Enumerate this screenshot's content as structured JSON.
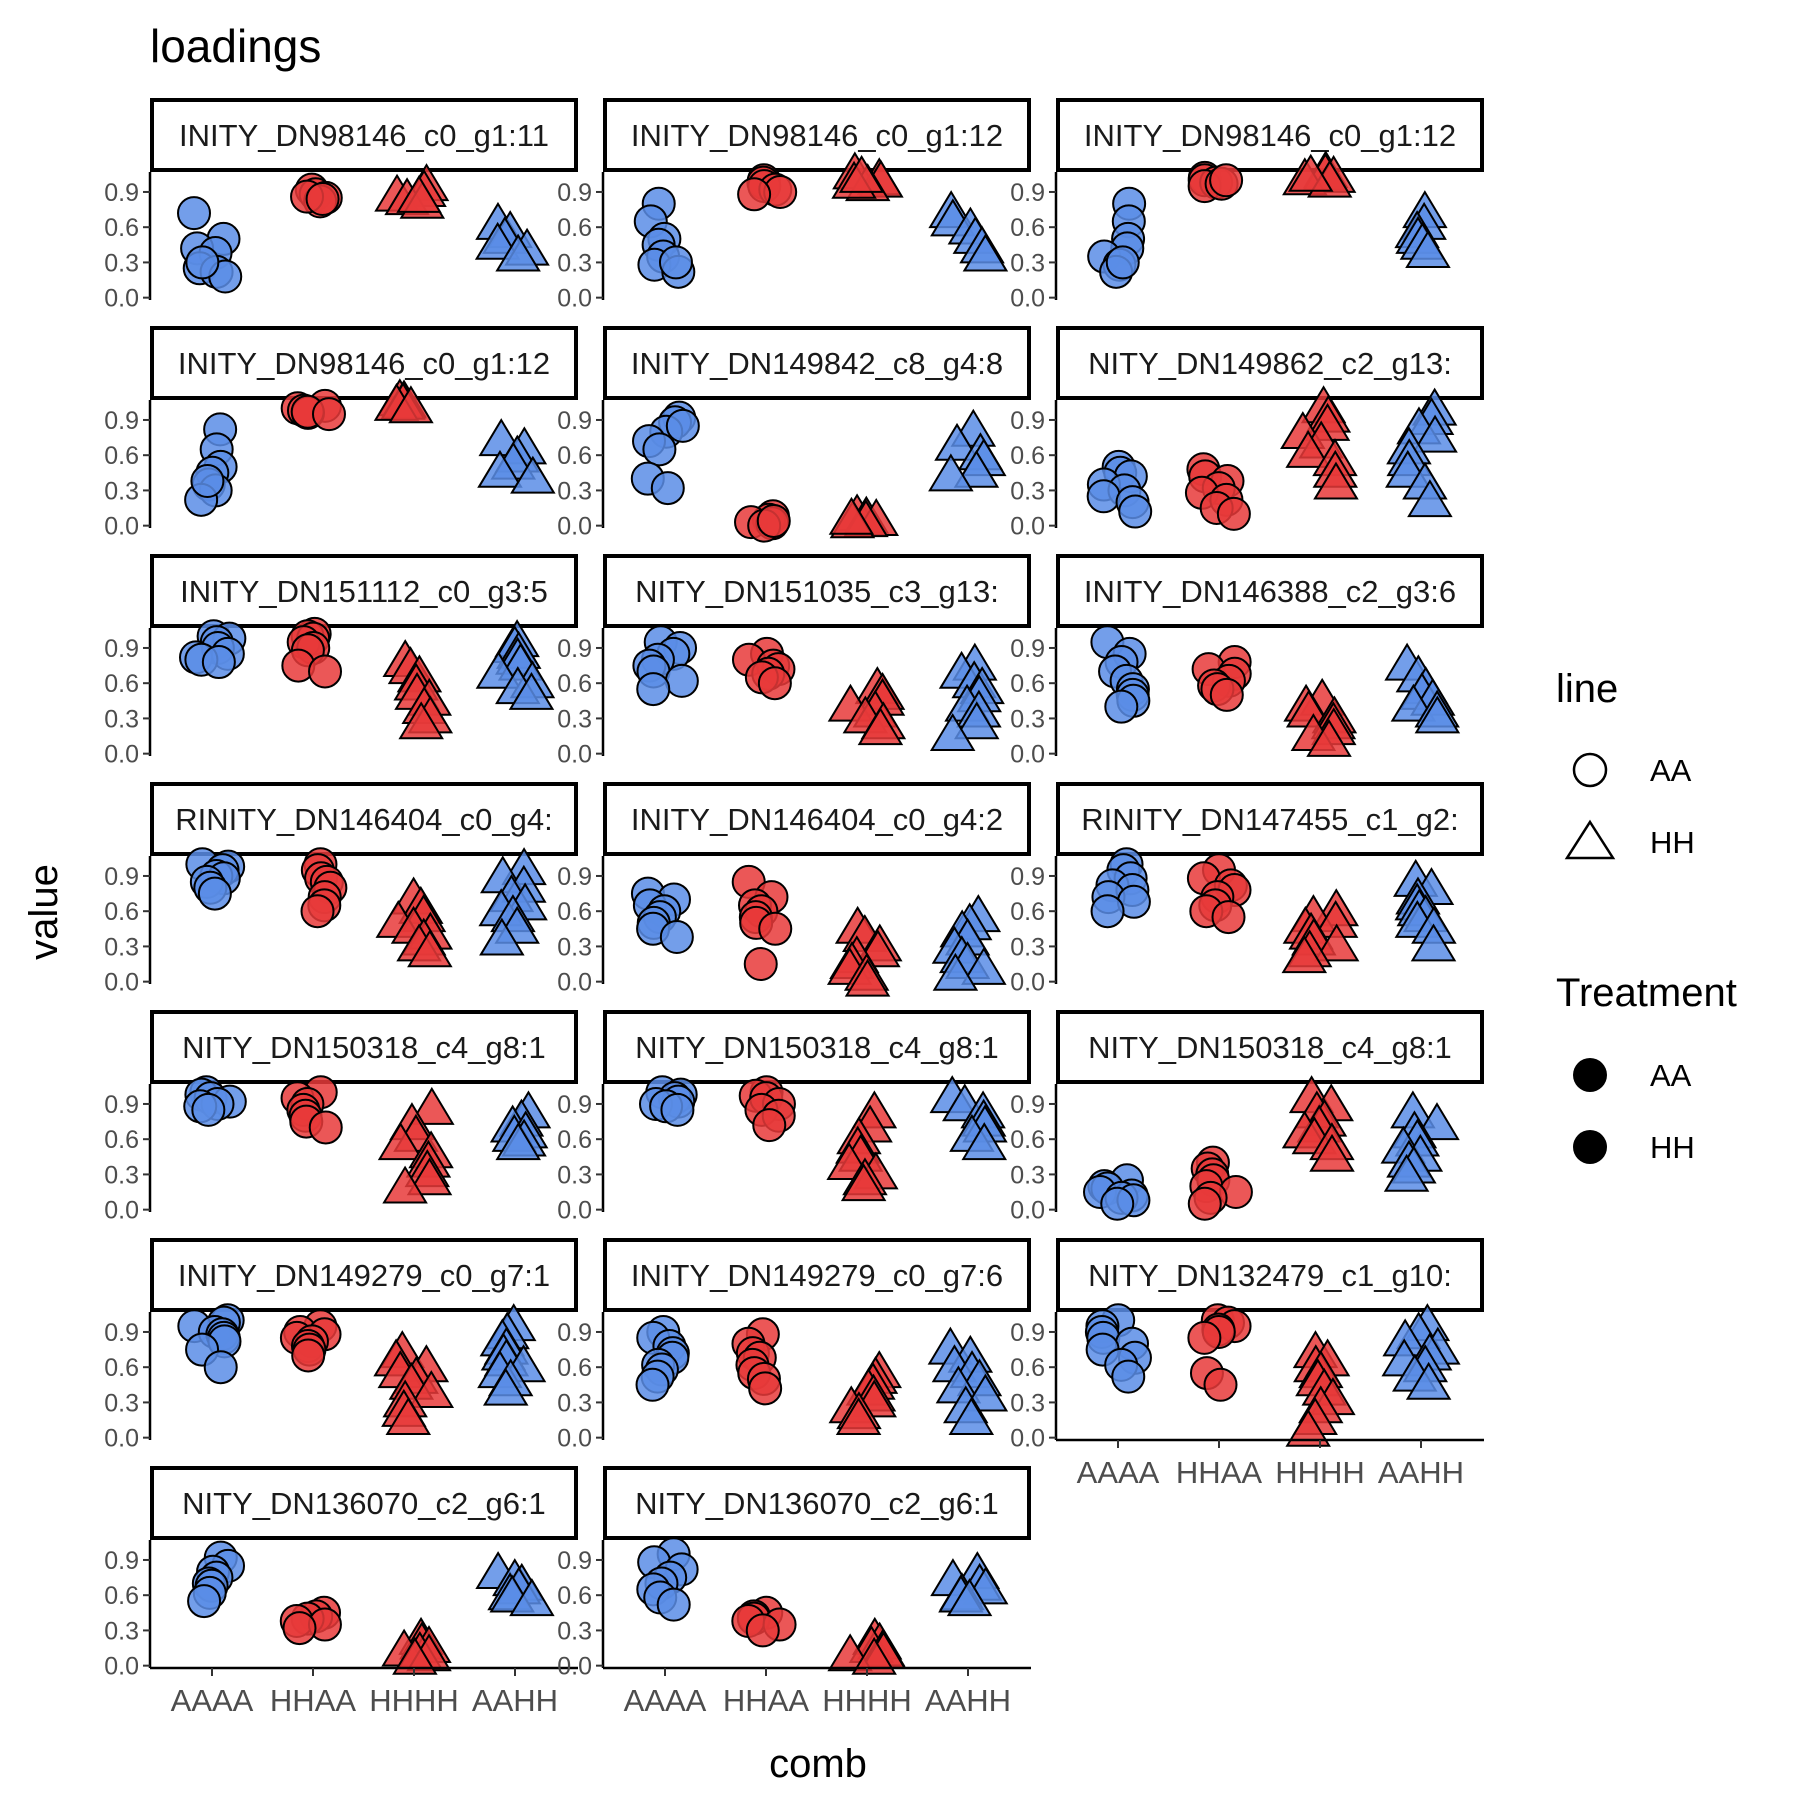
{
  "chart_data": {
    "type": "scatter",
    "title": "loadings",
    "xlabel": "comb",
    "ylabel": "value",
    "ylim": [
      -0.02,
      1.07
    ],
    "yticks": [
      "0.0",
      "0.3",
      "0.6",
      "0.9"
    ],
    "categories": [
      "AAAA",
      "HHAA",
      "HHHH",
      "AAHH"
    ],
    "grid": false,
    "legend_position": "right",
    "colors": {
      "AAAA": "#5B8DE6",
      "HHAA": "#E8393A",
      "HHHH": "#E8393A",
      "AAHH": "#5B8DE6"
    },
    "shapes": {
      "AAAA": "circle",
      "HHAA": "circle",
      "HHHH": "triangle",
      "AAHH": "triangle"
    },
    "legend": {
      "line": {
        "title": "line",
        "items": [
          "AA",
          "HH"
        ]
      },
      "treatment": {
        "title": "Treatment",
        "items": [
          "AA",
          "HH"
        ]
      }
    },
    "panels": [
      {
        "label": "INITY_DN98146_c0_g1:11",
        "values": {
          "AAAA": [
            0.72,
            0.5,
            0.42,
            0.38,
            0.25,
            0.22,
            0.18,
            0.3
          ],
          "HHAA": [
            0.92,
            0.88,
            0.85,
            0.82,
            0.86,
            0.84
          ],
          "HHHH": [
            0.95,
            0.9,
            0.86,
            0.83,
            0.8,
            0.85
          ],
          "AAHH": [
            0.62,
            0.55,
            0.5,
            0.45,
            0.4,
            0.35
          ]
        }
      },
      {
        "label": "INITY_DN98146_c0_g1:12",
        "values": {
          "AAAA": [
            0.8,
            0.65,
            0.5,
            0.45,
            0.35,
            0.28,
            0.22,
            0.3
          ],
          "HHAA": [
            1.0,
            0.98,
            0.95,
            0.92,
            0.9,
            0.88
          ],
          "HHHH": [
            1.05,
            1.0,
            0.98,
            0.95,
            0.97,
            1.02
          ],
          "AAHH": [
            0.72,
            0.65,
            0.58,
            0.5,
            0.42,
            0.35
          ]
        }
      },
      {
        "label": "INITY_DN98146_c0_g1:12",
        "values": {
          "AAAA": [
            0.8,
            0.65,
            0.5,
            0.42,
            0.35,
            0.28,
            0.22,
            0.3
          ],
          "HHAA": [
            1.02,
            1.0,
            0.98,
            0.95,
            0.97,
            1.0
          ],
          "HHHH": [
            1.06,
            1.04,
            1.02,
            1.0,
            0.98,
            1.03
          ],
          "AAHH": [
            0.72,
            0.62,
            0.55,
            0.5,
            0.45,
            0.38
          ]
        }
      },
      {
        "label": "INITY_DN98146_c0_g1:12",
        "values": {
          "AAAA": [
            0.82,
            0.65,
            0.5,
            0.45,
            0.35,
            0.3,
            0.22,
            0.38
          ],
          "HHAA": [
            1.02,
            1.0,
            0.98,
            0.96,
            0.97,
            0.95
          ],
          "HHHH": [
            1.06,
            1.05,
            1.04,
            1.03,
            1.02,
            1.0
          ],
          "AAHH": [
            0.72,
            0.65,
            0.58,
            0.52,
            0.45,
            0.4
          ]
        }
      },
      {
        "label": "INITY_DN149842_c8_g4:8",
        "values": {
          "AAAA": [
            0.92,
            0.88,
            0.8,
            0.72,
            0.65,
            0.4,
            0.32,
            0.85
          ],
          "HHAA": [
            0.08,
            0.05,
            0.03,
            0.02,
            0.0,
            0.04
          ],
          "HHHH": [
            0.08,
            0.06,
            0.04,
            0.03,
            0.02,
            0.05
          ],
          "AAHH": [
            0.8,
            0.68,
            0.6,
            0.55,
            0.45,
            0.42
          ]
        }
      },
      {
        "label": "NITY_DN149862_c2_g13:",
        "values": {
          "AAAA": [
            0.5,
            0.45,
            0.42,
            0.35,
            0.3,
            0.25,
            0.2,
            0.12
          ],
          "HHAA": [
            0.48,
            0.42,
            0.38,
            0.32,
            0.28,
            0.22,
            0.15,
            0.1
          ],
          "HHHH": [
            1.0,
            0.92,
            0.85,
            0.78,
            0.7,
            0.62,
            0.55,
            0.45,
            0.35
          ],
          "AAHH": [
            0.98,
            0.9,
            0.82,
            0.75,
            0.65,
            0.55,
            0.45,
            0.35,
            0.2
          ]
        }
      },
      {
        "label": "INITY_DN151112_c0_g3:5",
        "values": {
          "AAAA": [
            1.0,
            0.98,
            0.95,
            0.9,
            0.85,
            0.82,
            0.8,
            0.78
          ],
          "HHAA": [
            1.02,
            1.0,
            0.98,
            0.95,
            0.9,
            0.88,
            0.75,
            0.7
          ],
          "HHHH": [
            0.78,
            0.72,
            0.65,
            0.58,
            0.5,
            0.45,
            0.38,
            0.3,
            0.25
          ],
          "AAHH": [
            0.95,
            0.9,
            0.85,
            0.8,
            0.75,
            0.68,
            0.6,
            0.55,
            0.5
          ]
        }
      },
      {
        "label": "NITY_DN151035_c3_g13:",
        "values": {
          "AAAA": [
            0.95,
            0.9,
            0.85,
            0.8,
            0.75,
            0.7,
            0.62,
            0.55
          ],
          "HHAA": [
            0.85,
            0.8,
            0.75,
            0.72,
            0.68,
            0.65,
            0.6
          ],
          "HHHH": [
            0.55,
            0.5,
            0.45,
            0.4,
            0.35,
            0.3,
            0.25,
            0.2
          ],
          "AAHH": [
            0.75,
            0.68,
            0.6,
            0.55,
            0.48,
            0.4,
            0.35,
            0.25,
            0.15
          ]
        }
      },
      {
        "label": "INITY_DN146388_c2_g3:6",
        "values": {
          "AAAA": [
            0.95,
            0.85,
            0.78,
            0.7,
            0.62,
            0.55,
            0.5,
            0.45,
            0.4
          ],
          "HHAA": [
            0.78,
            0.72,
            0.68,
            0.62,
            0.58,
            0.55,
            0.5
          ],
          "HHHH": [
            0.45,
            0.4,
            0.35,
            0.3,
            0.25,
            0.2,
            0.15,
            0.1
          ],
          "AAHH": [
            0.75,
            0.65,
            0.55,
            0.5,
            0.45,
            0.4,
            0.35,
            0.3
          ]
        }
      },
      {
        "label": "RINITY_DN146404_c0_g4:",
        "values": {
          "AAAA": [
            1.0,
            0.98,
            0.95,
            0.9,
            0.88,
            0.85,
            0.8,
            0.75
          ],
          "HHAA": [
            1.0,
            0.95,
            0.88,
            0.85,
            0.8,
            0.72,
            0.65,
            0.6
          ],
          "HHHH": [
            0.7,
            0.62,
            0.55,
            0.5,
            0.45,
            0.4,
            0.35,
            0.3,
            0.25
          ],
          "AAHH": [
            0.95,
            0.88,
            0.8,
            0.72,
            0.65,
            0.6,
            0.55,
            0.45,
            0.35
          ]
        }
      },
      {
        "label": "INITY_DN146404_c0_g4:2",
        "values": {
          "AAAA": [
            0.75,
            0.7,
            0.65,
            0.6,
            0.55,
            0.5,
            0.45,
            0.38
          ],
          "HHAA": [
            0.85,
            0.72,
            0.65,
            0.6,
            0.55,
            0.5,
            0.45,
            0.15
          ],
          "HHHH": [
            0.45,
            0.38,
            0.3,
            0.25,
            0.2,
            0.15,
            0.1,
            0.05,
            0.0
          ],
          "AAHH": [
            0.55,
            0.48,
            0.42,
            0.35,
            0.28,
            0.2,
            0.15,
            0.1,
            0.05
          ]
        }
      },
      {
        "label": "RINITY_DN147455_c1_g2:",
        "values": {
          "AAAA": [
            1.0,
            0.95,
            0.88,
            0.82,
            0.78,
            0.72,
            0.68,
            0.6
          ],
          "HHAA": [
            0.95,
            0.88,
            0.82,
            0.78,
            0.72,
            0.65,
            0.6,
            0.55
          ],
          "HHHH": [
            0.6,
            0.55,
            0.5,
            0.45,
            0.4,
            0.35,
            0.3,
            0.25,
            0.2
          ],
          "AAHH": [
            0.85,
            0.78,
            0.7,
            0.65,
            0.6,
            0.55,
            0.5,
            0.45,
            0.3
          ]
        }
      },
      {
        "label": "NITY_DN150318_c4_g8:1",
        "values": {
          "AAAA": [
            1.0,
            0.98,
            0.95,
            0.92,
            0.9,
            0.88,
            0.85
          ],
          "HHAA": [
            1.0,
            0.95,
            0.9,
            0.85,
            0.8,
            0.75,
            0.7
          ],
          "HHHH": [
            0.85,
            0.72,
            0.62,
            0.55,
            0.48,
            0.4,
            0.32,
            0.25,
            0.18
          ],
          "AAHH": [
            0.82,
            0.75,
            0.7,
            0.65,
            0.62,
            0.58,
            0.55
          ]
        }
      },
      {
        "label": "NITY_DN150318_c4_g8:1",
        "values": {
          "AAAA": [
            1.0,
            0.98,
            0.95,
            0.92,
            0.9,
            0.88,
            0.85
          ],
          "HHAA": [
            1.0,
            0.97,
            0.95,
            0.9,
            0.85,
            0.8,
            0.72
          ],
          "HHHH": [
            0.82,
            0.7,
            0.6,
            0.52,
            0.45,
            0.38,
            0.3,
            0.25,
            0.2
          ],
          "AAHH": [
            0.95,
            0.88,
            0.82,
            0.75,
            0.7,
            0.62,
            0.55
          ]
        }
      },
      {
        "label": "NITY_DN150318_c4_g8:1",
        "values": {
          "AAAA": [
            0.25,
            0.2,
            0.18,
            0.15,
            0.12,
            0.1,
            0.08,
            0.05
          ],
          "HHAA": [
            0.4,
            0.35,
            0.3,
            0.25,
            0.2,
            0.15,
            0.1,
            0.05
          ],
          "HHHH": [
            0.95,
            0.88,
            0.82,
            0.75,
            0.7,
            0.65,
            0.6,
            0.55,
            0.45
          ],
          "AAHH": [
            0.82,
            0.72,
            0.65,
            0.58,
            0.52,
            0.45,
            0.4,
            0.35,
            0.28
          ]
        }
      },
      {
        "label": "INITY_DN149279_c0_g7:1",
        "values": {
          "AAAA": [
            1.0,
            0.98,
            0.95,
            0.9,
            0.88,
            0.85,
            0.82,
            0.75,
            0.6
          ],
          "HHAA": [
            0.95,
            0.9,
            0.88,
            0.85,
            0.82,
            0.78,
            0.75,
            0.7
          ],
          "HHHH": [
            0.72,
            0.65,
            0.6,
            0.55,
            0.5,
            0.45,
            0.38,
            0.3,
            0.22,
            0.15
          ],
          "AAHH": [
            0.95,
            0.88,
            0.82,
            0.75,
            0.7,
            0.65,
            0.6,
            0.55,
            0.48,
            0.4
          ]
        }
      },
      {
        "label": "INITY_DN149279_c0_g7:6",
        "values": {
          "AAAA": [
            0.9,
            0.85,
            0.78,
            0.72,
            0.68,
            0.62,
            0.58,
            0.52,
            0.45
          ],
          "HHAA": [
            0.88,
            0.8,
            0.72,
            0.68,
            0.62,
            0.55,
            0.5,
            0.42
          ],
          "HHHH": [
            0.55,
            0.5,
            0.45,
            0.4,
            0.35,
            0.3,
            0.25,
            0.2,
            0.15
          ],
          "AAHH": [
            0.75,
            0.68,
            0.6,
            0.55,
            0.48,
            0.42,
            0.35,
            0.25,
            0.15
          ]
        }
      },
      {
        "label": "NITY_DN132479_c1_g10:",
        "values": {
          "AAAA": [
            1.0,
            0.95,
            0.9,
            0.85,
            0.8,
            0.75,
            0.68,
            0.62,
            0.52
          ],
          "HHAA": [
            1.0,
            0.98,
            0.95,
            0.92,
            0.9,
            0.85,
            0.55,
            0.45
          ],
          "HHHH": [
            0.72,
            0.65,
            0.6,
            0.55,
            0.48,
            0.4,
            0.32,
            0.25,
            0.15,
            0.05
          ],
          "AAHH": [
            0.95,
            0.88,
            0.82,
            0.75,
            0.7,
            0.65,
            0.6,
            0.52,
            0.45
          ]
        }
      },
      {
        "label": "NITY_DN136070_c2_g6:1",
        "values": {
          "AAAA": [
            0.92,
            0.85,
            0.8,
            0.75,
            0.7,
            0.68,
            0.62,
            0.55
          ],
          "HHAA": [
            0.45,
            0.42,
            0.4,
            0.38,
            0.35,
            0.32
          ],
          "HHHH": [
            0.22,
            0.18,
            0.15,
            0.12,
            0.1,
            0.08,
            0.05
          ],
          "AAHH": [
            0.78,
            0.72,
            0.68,
            0.65,
            0.6,
            0.58,
            0.55
          ]
        }
      },
      {
        "label": "NITY_DN136070_c2_g6:1",
        "values": {
          "AAAA": [
            0.95,
            0.88,
            0.82,
            0.75,
            0.7,
            0.65,
            0.58,
            0.52
          ],
          "HHAA": [
            0.45,
            0.42,
            0.4,
            0.38,
            0.35,
            0.3
          ],
          "HHHH": [
            0.22,
            0.18,
            0.15,
            0.12,
            0.1,
            0.08,
            0.05
          ],
          "AAHH": [
            0.78,
            0.72,
            0.68,
            0.65,
            0.6,
            0.58,
            0.55
          ]
        }
      }
    ]
  }
}
